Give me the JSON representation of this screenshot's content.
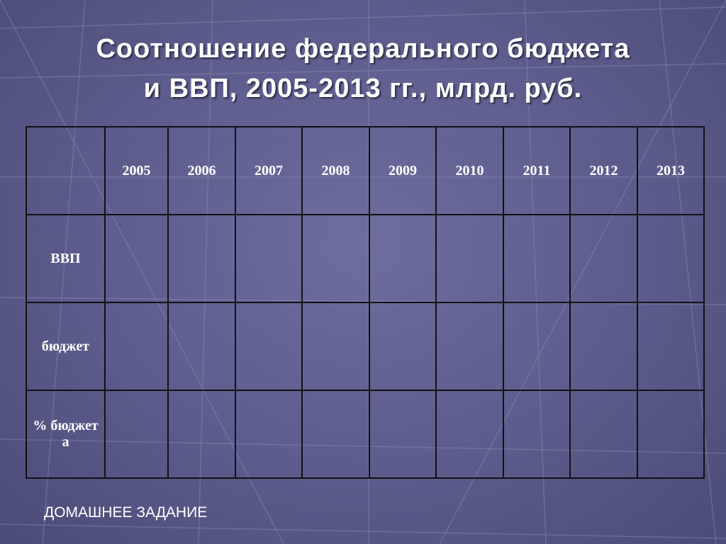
{
  "header": {
    "title_lines": [
      "Соотношение федерального бюджета",
      "и ВВП, 2005-2013 гг., млрд. руб."
    ]
  },
  "table": {
    "columns": [
      "2005",
      "2006",
      "2007",
      "2008",
      "2009",
      "2010",
      "2011",
      "2012",
      "2013"
    ],
    "rows": [
      "ВВП",
      "бюджет",
      "% бюджета"
    ]
  },
  "footer": {
    "text": "ДОМАШНЕЕ ЗАДАНИЕ"
  }
}
